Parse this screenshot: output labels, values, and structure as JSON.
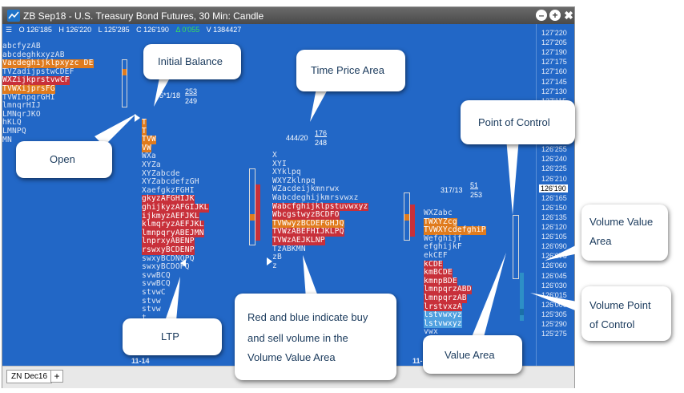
{
  "window": {
    "title": "ZB Sep18 - U.S. Treasury Bond Futures, 30 Min: Candle"
  },
  "ohlc": {
    "open": "O 126'185",
    "high": "H 126'220",
    "low": "L 125'285",
    "close": "C 126'190",
    "change": "Δ 0'055",
    "volume": "V 1384427"
  },
  "price_scale": {
    "ticks": [
      "127'220",
      "127'205",
      "127'190",
      "127'175",
      "127'160",
      "127'145",
      "127'130",
      "127'115",
      "126'315",
      "126'300",
      "126'285",
      "126'270",
      "126'255",
      "126'240",
      "126'225",
      "126'210",
      "126'190",
      "126'165",
      "126'150",
      "126'135",
      "126'120",
      "126'105",
      "126'090",
      "126'075",
      "126'060",
      "126'045",
      "126'030",
      "126'015",
      "126'000",
      "125'305",
      "125'290",
      "125'275"
    ],
    "current_price": "126'190"
  },
  "profile_left": {
    "lines": [
      "abcfyzAB",
      "abcdeghkxyzAB",
      "Vacdeghijklpxyzc DE",
      "TVZadijpstwCDEF",
      "WXZijkprstvwCF",
      "TVWXijprsFG",
      "TVWInpqrGHI",
      "lmnqrHIJ",
      "LMNqrJKO",
      "hKLQ",
      "LMNPQ",
      "MN"
    ],
    "stat": "5*1/18",
    "stat_num": "253",
    "stat_den": "249"
  },
  "profile_mid_left": {
    "lines": [
      "T",
      "T",
      "TVW",
      "VW",
      "WXa",
      "XYZa",
      "XYZabcde",
      "XYZabcdefzGH",
      "XaefgkzFGHI",
      "gkyzAFGHIJK",
      "ghijkyzAFGIJKL",
      "ijkmyzAEFJKL",
      "klmqryzAEFJKL",
      "lmnpqryABEJMN",
      "lnprxyABENP",
      "rswxyBCDENP",
      "swxyBCDNOPQ",
      "swxyBCDOPQ",
      "svwBCQ",
      "svwBCQ",
      "stvwC",
      "stvw",
      "stvw",
      "t",
      "t",
      "t"
    ],
    "date": "11-14"
  },
  "profile_mid": {
    "lines": [
      "X",
      "XYI",
      "XYklpq",
      "WXYZklnpq",
      "WZacdeijkmnrwx",
      "Wabcdeghijkmrsvwxz",
      "Wabcfghijklpstuvwxyz",
      "WbcgstwyzBCDFO",
      "TVWwyzBCDEFGHJQ",
      "TVWzABEFHIJKLPQ",
      "TVWzAEJKLNP",
      "TzABKMN",
      "zB",
      "z"
    ],
    "stat": "444/20",
    "stat_num": "176",
    "stat_den": "248"
  },
  "profile_right": {
    "lines": [
      "WXZabc",
      "TWXYZcg",
      "TVWXYcdefghiP",
      "Wefghijf",
      "efghijkF",
      "ekCEF",
      "kCDE",
      "kmBCDE",
      "kmnpBDE",
      "lmnpqrzABD",
      "lmnpqrzAB",
      "lrstvxzA",
      "lstvwxyz",
      "lstvwxyz",
      "vwx",
      "vwx"
    ],
    "stat": "317/13",
    "stat_num": "51",
    "stat_den": "253",
    "date": "11-1"
  },
  "tabs": {
    "active": "ZN Dec16",
    "add": "+"
  },
  "callouts": {
    "initial_balance": "Initial Balance",
    "time_price_area": "Time Price Area",
    "point_of_control": "Point of Control",
    "open": "Open",
    "volume_value_area": [
      "Volume Value",
      "Area"
    ],
    "volume_poc": [
      "Volume Point",
      "of Control"
    ],
    "ltp": "LTP",
    "red_blue": [
      "Red and blue indicate buy",
      "and sell volume in the",
      "Volume Value Area"
    ],
    "value_area": "Value Area"
  },
  "colors": {
    "chart_bg": "#2267c6",
    "profile_text": "#dfe7f5",
    "highlight_orange": "#e07b1d",
    "highlight_red": "#c8303a",
    "callout_text": "#1a3a5c",
    "change_green": "#3adf5a"
  }
}
